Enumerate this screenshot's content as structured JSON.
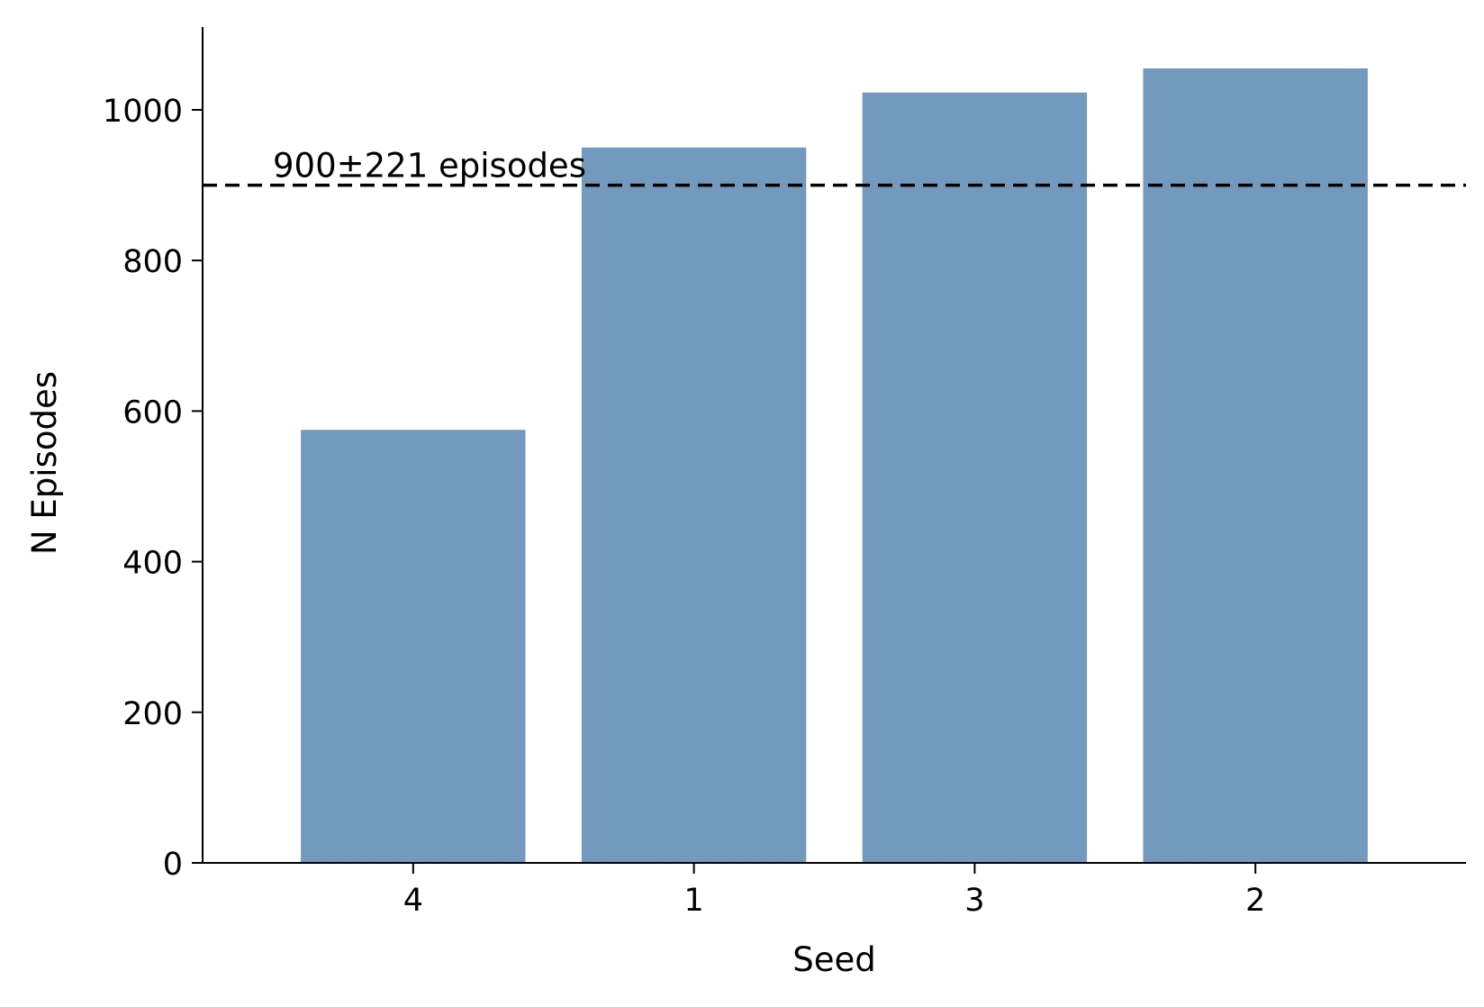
{
  "chart_data": {
    "type": "bar",
    "title": "",
    "xlabel": "Seed",
    "ylabel": "N Episodes",
    "categories": [
      "4",
      "1",
      "3",
      "2"
    ],
    "values": [
      575,
      950,
      1023,
      1055
    ],
    "ylim": [
      0,
      1110
    ],
    "yticks": [
      0,
      200,
      400,
      600,
      800,
      1000
    ],
    "ytick_labels": [
      "0",
      "200",
      "400",
      "600",
      "800",
      "1000"
    ],
    "reference_line": {
      "value": 900,
      "style": "dashed",
      "color": "#000000"
    },
    "annotation": "900±221 episodes",
    "bar_color": "#7399bf",
    "grid": false,
    "legend": "none"
  }
}
